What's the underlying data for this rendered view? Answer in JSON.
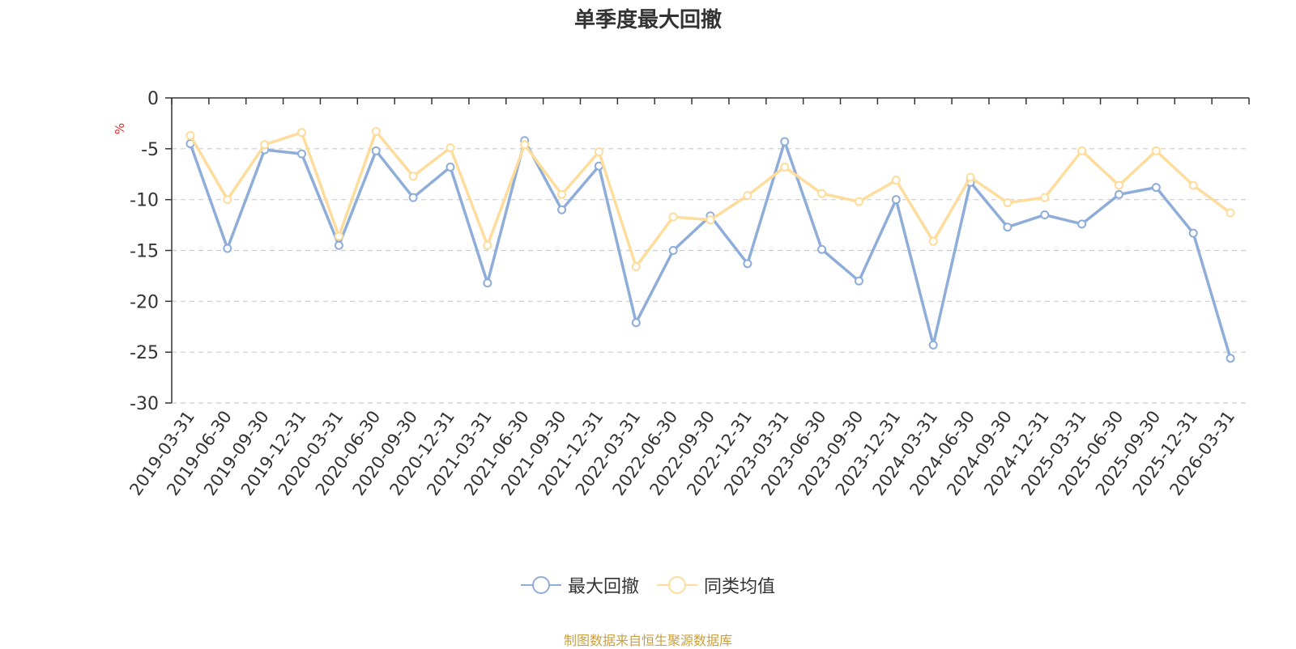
{
  "chart_data": {
    "type": "line",
    "title": "单季度最大回撤",
    "ylabel": "%",
    "ylim": [
      -30,
      0
    ],
    "yticks": [
      0,
      -5,
      -10,
      -15,
      -20,
      -25,
      -30
    ],
    "grid": true,
    "legend_position": "bottom",
    "categories": [
      "2019-03-31",
      "2019-06-30",
      "2019-09-30",
      "2019-12-31",
      "2020-03-31",
      "2020-06-30",
      "2020-09-30",
      "2020-12-31",
      "2021-03-31",
      "2021-06-30",
      "2021-09-30",
      "2021-12-31",
      "2022-03-31",
      "2022-06-30",
      "2022-09-30",
      "2022-12-31",
      "2023-03-31",
      "2023-06-30",
      "2023-09-30",
      "2023-12-31",
      "2024-03-31",
      "2024-06-30",
      "2024-09-30",
      "2024-12-31",
      "2025-03-31",
      "2025-06-30",
      "2025-09-30",
      "2025-12-31",
      "2026-03-31"
    ],
    "series": [
      {
        "name": "最大回撤",
        "color": "#8eadd8",
        "values": [
          -4.5,
          -14.8,
          -5.1,
          -5.5,
          -14.5,
          -5.2,
          -9.8,
          -6.8,
          -18.2,
          -4.2,
          -11.0,
          -6.7,
          -22.1,
          -15.0,
          -11.6,
          -16.3,
          -4.3,
          -14.9,
          -18.0,
          -10.0,
          -24.3,
          -8.3,
          -12.7,
          -11.5,
          -12.4,
          -9.5,
          -8.8,
          -13.3,
          -25.6
        ]
      },
      {
        "name": "同类均值",
        "color": "#fddc9c",
        "values": [
          -3.7,
          -10.0,
          -4.6,
          -3.4,
          -13.6,
          -3.3,
          -7.7,
          -4.9,
          -14.5,
          -4.6,
          -9.5,
          -5.3,
          -16.6,
          -11.7,
          -12.0,
          -9.6,
          -6.8,
          -9.4,
          -10.2,
          -8.1,
          -14.1,
          -7.8,
          -10.3,
          -9.8,
          -5.2,
          -8.6,
          -5.2,
          -8.6,
          -11.3
        ]
      }
    ]
  },
  "source_note": "制图数据来自恒生聚源数据库"
}
